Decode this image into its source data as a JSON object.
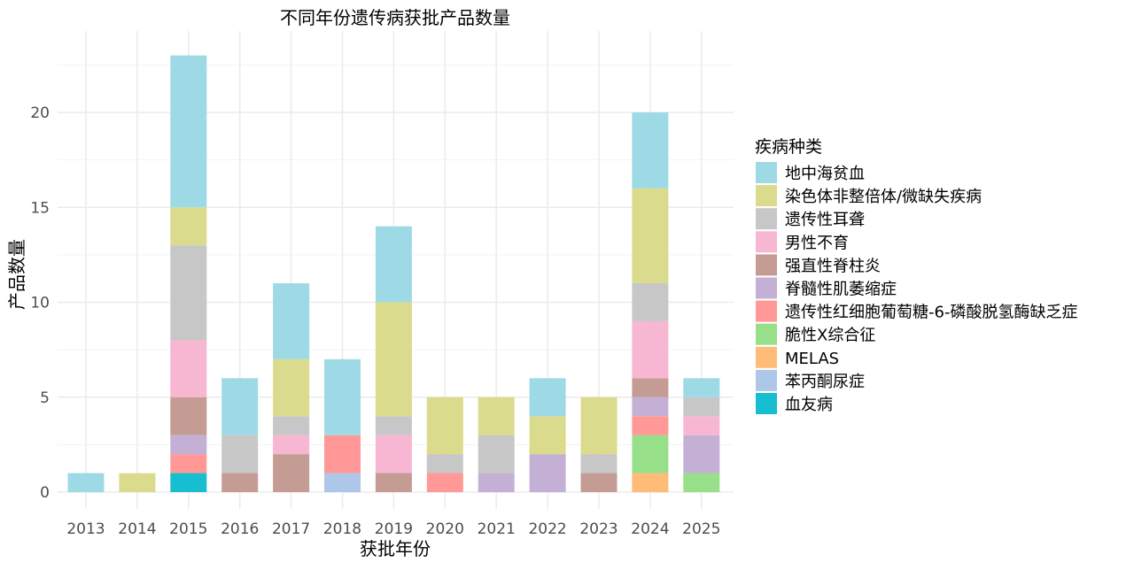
{
  "chart_data": {
    "type": "bar",
    "stacked": true,
    "title": "不同年份遗传病获批产品数量",
    "xlabel": "获批年份",
    "ylabel": "产品数量",
    "ylim": [
      0,
      23.5
    ],
    "yticks": [
      0,
      5,
      10,
      15,
      20
    ],
    "grid": true,
    "legend_title": "疾病种类",
    "legend_position": "right",
    "categories": [
      "2013",
      "2014",
      "2015",
      "2016",
      "2017",
      "2018",
      "2019",
      "2020",
      "2021",
      "2022",
      "2023",
      "2024",
      "2025"
    ],
    "series": [
      {
        "name": "血友病",
        "color": "#17becf",
        "values": [
          0,
          0,
          1,
          0,
          0,
          0,
          0,
          0,
          0,
          0,
          0,
          0,
          0
        ]
      },
      {
        "name": "苯丙酮尿症",
        "color": "#aec7e8",
        "values": [
          0,
          0,
          0,
          0,
          0,
          1,
          0,
          0,
          0,
          0,
          0,
          0,
          0
        ]
      },
      {
        "name": "MELAS",
        "color": "#ffbb78",
        "values": [
          0,
          0,
          0,
          0,
          0,
          0,
          0,
          0,
          0,
          0,
          0,
          1,
          0
        ]
      },
      {
        "name": "脆性X综合征",
        "color": "#98df8a",
        "values": [
          0,
          0,
          0,
          0,
          0,
          0,
          0,
          0,
          0,
          0,
          0,
          2,
          1
        ]
      },
      {
        "name": "遗传性红细胞葡萄糖-6-磷酸脱氢酶缺乏症",
        "color": "#ff9896",
        "values": [
          0,
          0,
          1,
          0,
          0,
          2,
          0,
          1,
          0,
          0,
          0,
          1,
          0
        ]
      },
      {
        "name": "脊髓性肌萎缩症",
        "color": "#c5b0d5",
        "values": [
          0,
          0,
          1,
          0,
          0,
          0,
          0,
          0,
          1,
          2,
          0,
          1,
          2
        ]
      },
      {
        "name": "强直性脊柱炎",
        "color": "#c49c94",
        "values": [
          0,
          0,
          2,
          1,
          2,
          0,
          1,
          0,
          0,
          0,
          1,
          1,
          0
        ]
      },
      {
        "name": "男性不育",
        "color": "#f7b6d2",
        "values": [
          0,
          0,
          3,
          0,
          1,
          0,
          2,
          0,
          0,
          0,
          0,
          3,
          1
        ]
      },
      {
        "name": "遗传性耳聋",
        "color": "#c7c7c7",
        "values": [
          0,
          0,
          5,
          2,
          1,
          0,
          1,
          1,
          2,
          0,
          1,
          2,
          1
        ]
      },
      {
        "name": "染色体非整倍体/微缺失疾病",
        "color": "#dbdb8d",
        "values": [
          0,
          1,
          2,
          0,
          3,
          0,
          6,
          3,
          2,
          2,
          3,
          5,
          0
        ]
      },
      {
        "name": "地中海贫血",
        "color": "#9edae5",
        "values": [
          1,
          0,
          8,
          3,
          4,
          4,
          4,
          0,
          0,
          2,
          0,
          4,
          1
        ]
      }
    ]
  }
}
